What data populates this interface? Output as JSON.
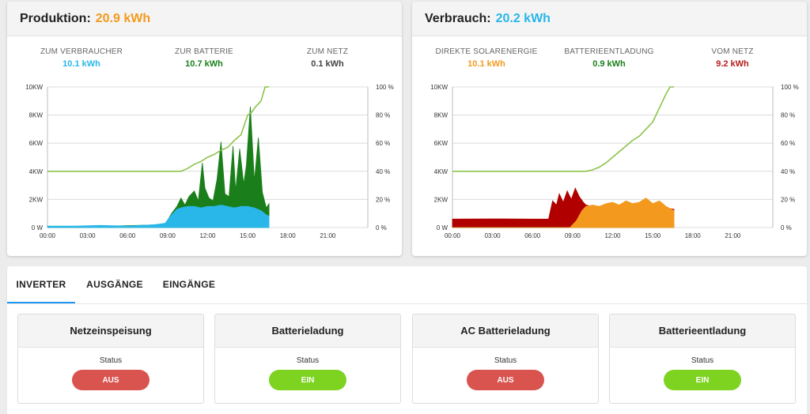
{
  "production": {
    "title": "Produktion:",
    "value": "20.9 kWh",
    "value_color": "#f39a1e",
    "stats": [
      {
        "label": "ZUM VERBRAUCHER",
        "value": "10.1 kWh",
        "color": "#29b6e8"
      },
      {
        "label": "ZUR BATTERIE",
        "value": "10.7 kWh",
        "color": "#1a7f1a"
      },
      {
        "label": "ZUM NETZ",
        "value": "0.1 kWh",
        "color": "#444444"
      }
    ]
  },
  "consumption": {
    "title": "Verbrauch:",
    "value": "20.2 kWh",
    "value_color": "#29b6e8",
    "stats": [
      {
        "label": "DIREKTE SOLARENERGIE",
        "value": "10.1 kWh",
        "color": "#f39a1e"
      },
      {
        "label": "BATTERIEENTLADUNG",
        "value": "0.9 kWh",
        "color": "#1a7f1a"
      },
      {
        "label": "VOM NETZ",
        "value": "9.2 kWh",
        "color": "#b71c1c"
      }
    ]
  },
  "chart_axes": {
    "y_left_ticks": [
      "0 W",
      "2KW",
      "4KW",
      "6KW",
      "8KW",
      "10KW"
    ],
    "y_right_ticks": [
      "0 %",
      "20 %",
      "40 %",
      "60 %",
      "80 %",
      "100 %"
    ],
    "x_ticks": [
      "00:00",
      "03:00",
      "06:00",
      "09:00",
      "12:00",
      "15:00",
      "18:00",
      "21:00"
    ]
  },
  "chart_data": [
    {
      "type": "area",
      "xlim": [
        0,
        24
      ],
      "ylim": [
        0,
        10
      ],
      "y2lim": [
        0,
        100
      ],
      "series": [
        {
          "color": "#1a7f1a",
          "x": [
            0,
            8.8,
            9.3,
            9.7,
            10.0,
            10.3,
            10.6,
            11.0,
            11.3,
            11.6,
            11.8,
            12.1,
            12.4,
            12.7,
            13.0,
            13.3,
            13.6,
            13.9,
            14.1,
            14.4,
            14.7,
            14.9,
            15.2,
            15.5,
            15.8,
            16.1,
            16.4,
            16.6
          ],
          "y": [
            0,
            0.2,
            1.0,
            1.5,
            2.1,
            1.6,
            2.2,
            2.6,
            1.9,
            4.6,
            2.8,
            2.1,
            1.9,
            3.4,
            6.1,
            2.4,
            2.2,
            5.8,
            2.6,
            5.6,
            3.1,
            4.4,
            8.6,
            3.3,
            6.4,
            2.5,
            1.4,
            1.7
          ]
        },
        {
          "color": "#29b6e8",
          "x": [
            0,
            2,
            4,
            6,
            8,
            8.8,
            9.3,
            9.7,
            10.0,
            10.5,
            11.0,
            11.5,
            12.0,
            12.5,
            13.0,
            13.5,
            14.0,
            14.5,
            15.0,
            15.5,
            16.0,
            16.4,
            16.6
          ],
          "y": [
            0.1,
            0.1,
            0.15,
            0.1,
            0.2,
            0.3,
            0.9,
            1.3,
            1.4,
            1.5,
            1.5,
            1.4,
            1.5,
            1.5,
            1.6,
            1.5,
            1.4,
            1.5,
            1.5,
            1.4,
            1.2,
            0.9,
            0.8
          ]
        },
        {
          "color": "#8bc34a",
          "axis": "right",
          "x": [
            0,
            9.5,
            10.0,
            10.5,
            11.0,
            11.5,
            12.0,
            12.5,
            13.0,
            13.5,
            14.0,
            14.5,
            15.0,
            15.3,
            15.6,
            16.0,
            16.3,
            16.6
          ],
          "y": [
            40,
            40,
            40,
            42,
            45,
            47,
            50,
            52,
            55,
            57,
            62,
            66,
            80,
            82,
            86,
            90,
            100,
            100
          ]
        }
      ]
    },
    {
      "type": "area",
      "xlim": [
        0,
        24
      ],
      "ylim": [
        0,
        10
      ],
      "y2lim": [
        0,
        100
      ],
      "series": [
        {
          "color": "#b00000",
          "x": [
            0,
            3,
            6,
            7.2,
            7.5,
            7.8,
            8.0,
            8.3,
            8.6,
            8.9,
            9.2,
            9.5,
            9.8,
            10.0,
            11.0,
            12.0,
            13.0,
            14.0,
            15.0,
            16.0,
            16.6
          ],
          "y": [
            0.6,
            0.62,
            0.6,
            0.6,
            1.9,
            1.6,
            2.4,
            1.8,
            2.6,
            2.0,
            2.8,
            2.2,
            1.8,
            1.6,
            1.4,
            1.5,
            1.6,
            1.5,
            1.5,
            1.4,
            1.3
          ]
        },
        {
          "color": "#1a7f1a",
          "x": [
            0,
            9.5,
            10.0,
            11.0,
            12.0,
            13.0,
            14.0,
            14.5,
            15.0,
            15.5,
            16.0,
            16.6
          ],
          "y": [
            0,
            0,
            0.1,
            0.2,
            0.2,
            0.3,
            0.3,
            0.4,
            0.3,
            0.2,
            0.1,
            0
          ]
        },
        {
          "color": "#f39a1e",
          "x": [
            0,
            8.8,
            9.3,
            9.7,
            10.0,
            10.5,
            11.0,
            11.5,
            12.0,
            12.5,
            13.0,
            13.5,
            14.0,
            14.5,
            15.0,
            15.5,
            16.0,
            16.4,
            16.6
          ],
          "y": [
            0,
            0,
            0.5,
            1.2,
            1.5,
            1.6,
            1.5,
            1.7,
            1.8,
            1.6,
            1.9,
            1.7,
            1.8,
            2.1,
            1.7,
            1.9,
            1.5,
            1.3,
            1.2
          ]
        },
        {
          "color": "#8bc34a",
          "axis": "right",
          "x": [
            0,
            9.5,
            10.0,
            10.5,
            11.0,
            11.5,
            12.0,
            12.5,
            13.0,
            13.5,
            14.0,
            14.5,
            15.0,
            15.5,
            16.0,
            16.3,
            16.6
          ],
          "y": [
            40,
            40,
            40,
            41,
            43,
            46,
            50,
            54,
            58,
            62,
            65,
            70,
            75,
            85,
            95,
            100,
            100
          ]
        }
      ]
    }
  ],
  "tabs": [
    {
      "label": "INVERTER",
      "active": true
    },
    {
      "label": "AUSGÄNGE",
      "active": false
    },
    {
      "label": "EINGÄNGE",
      "active": false
    }
  ],
  "status_cards": [
    {
      "title": "Netzeinspeisung",
      "status_label": "Status",
      "button": "AUS",
      "color": "#d9534f"
    },
    {
      "title": "Batterieladung",
      "status_label": "Status",
      "button": "EIN",
      "color": "#7ed321"
    },
    {
      "title": "AC Batterieladung",
      "status_label": "Status",
      "button": "AUS",
      "color": "#d9534f"
    },
    {
      "title": "Batterieentladung",
      "status_label": "Status",
      "button": "EIN",
      "color": "#7ed321"
    }
  ]
}
